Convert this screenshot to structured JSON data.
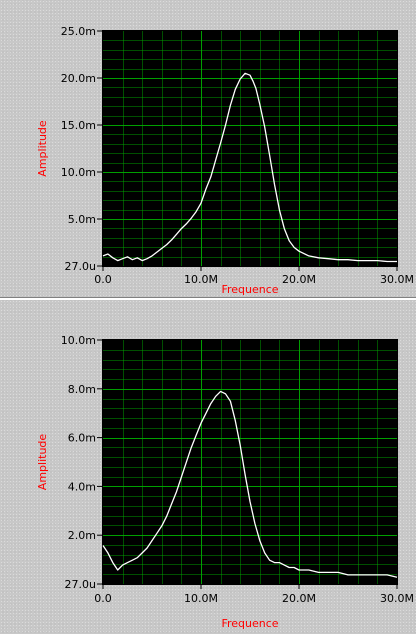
{
  "colors": {
    "plot_background": "#000000",
    "grid": "#00b000",
    "trace": "#ffffff",
    "axis_label": "#ff0000",
    "panel_background": "#c8c8c8"
  },
  "chart_data": [
    {
      "type": "line",
      "xlabel": "Frequence",
      "ylabel": "Amplitude",
      "xlim": [
        0,
        30000000
      ],
      "ylim": [
        2.7e-05,
        0.025
      ],
      "x_ticks": [
        "0.0",
        "10.0M",
        "20.0M",
        "30.0M"
      ],
      "y_ticks": [
        "27.0u",
        "5.0m",
        "10.0m",
        "15.0m",
        "20.0m",
        "25.0m"
      ],
      "grid": true,
      "series": [
        {
          "x": [
            0,
            500000,
            1000000,
            1500000,
            2000000,
            2500000,
            3000000,
            3500000,
            4000000,
            4500000,
            5000000,
            5500000,
            6000000,
            6500000,
            7000000,
            7500000,
            8000000,
            8500000,
            9000000,
            9500000,
            10000000,
            10500000,
            11000000,
            11500000,
            12000000,
            12500000,
            13000000,
            13500000,
            14000000,
            14500000,
            15000000,
            15300000,
            15600000,
            16000000,
            16500000,
            17000000,
            17500000,
            18000000,
            18500000,
            19000000,
            19500000,
            20000000,
            21000000,
            22000000,
            23000000,
            24000000,
            25000000,
            26000000,
            27000000,
            28000000,
            29000000,
            30000000
          ],
          "values": [
            0.0011,
            0.0013,
            0.0009,
            0.0006,
            0.0008,
            0.001,
            0.0007,
            0.0009,
            0.0006,
            0.0008,
            0.0011,
            0.0015,
            0.0019,
            0.0023,
            0.0028,
            0.0034,
            0.004,
            0.0045,
            0.0051,
            0.0058,
            0.0067,
            0.0082,
            0.0095,
            0.0113,
            0.0131,
            0.015,
            0.0171,
            0.0188,
            0.0199,
            0.0205,
            0.0203,
            0.0197,
            0.0189,
            0.0172,
            0.0148,
            0.0118,
            0.0087,
            0.006,
            0.004,
            0.0027,
            0.002,
            0.0016,
            0.0011,
            0.0009,
            0.0008,
            0.0007,
            0.0007,
            0.0006,
            0.0006,
            0.0006,
            0.0005,
            0.0005
          ]
        }
      ]
    },
    {
      "type": "line",
      "xlabel": "Frequence",
      "ylabel": "Amplitude",
      "xlim": [
        0,
        30000000
      ],
      "ylim": [
        2.7e-05,
        0.01
      ],
      "x_ticks": [
        "0.0",
        "10.0M",
        "20.0M",
        "30.0M"
      ],
      "y_ticks": [
        "27.0u",
        "2.0m",
        "4.0m",
        "6.0m",
        "8.0m",
        "10.0m"
      ],
      "grid": true,
      "series": [
        {
          "x": [
            0,
            500000,
            1000000,
            1500000,
            2000000,
            2500000,
            3000000,
            3500000,
            4000000,
            4500000,
            5000000,
            5500000,
            6000000,
            6500000,
            7000000,
            7500000,
            8000000,
            8500000,
            9000000,
            9500000,
            10000000,
            10500000,
            11000000,
            11500000,
            12000000,
            12500000,
            13000000,
            13500000,
            14000000,
            14500000,
            15000000,
            15500000,
            16000000,
            16500000,
            17000000,
            17500000,
            18000000,
            18500000,
            19000000,
            19500000,
            20000000,
            21000000,
            22000000,
            23000000,
            24000000,
            25000000,
            26000000,
            27000000,
            28000000,
            29000000,
            30000000
          ],
          "values": [
            0.0016,
            0.0013,
            0.0009,
            0.0006,
            0.0008,
            0.0009,
            0.001,
            0.0011,
            0.0013,
            0.0015,
            0.0018,
            0.0021,
            0.0024,
            0.0028,
            0.0033,
            0.0038,
            0.0044,
            0.005,
            0.0056,
            0.0061,
            0.0066,
            0.007,
            0.0074,
            0.0077,
            0.0079,
            0.0078,
            0.0075,
            0.0067,
            0.0057,
            0.0045,
            0.0034,
            0.0025,
            0.0018,
            0.0013,
            0.001,
            0.0009,
            0.0009,
            0.0008,
            0.0007,
            0.0007,
            0.0006,
            0.0006,
            0.0005,
            0.0005,
            0.0005,
            0.0004,
            0.0004,
            0.0004,
            0.0004,
            0.0004,
            0.0003
          ]
        }
      ]
    }
  ]
}
